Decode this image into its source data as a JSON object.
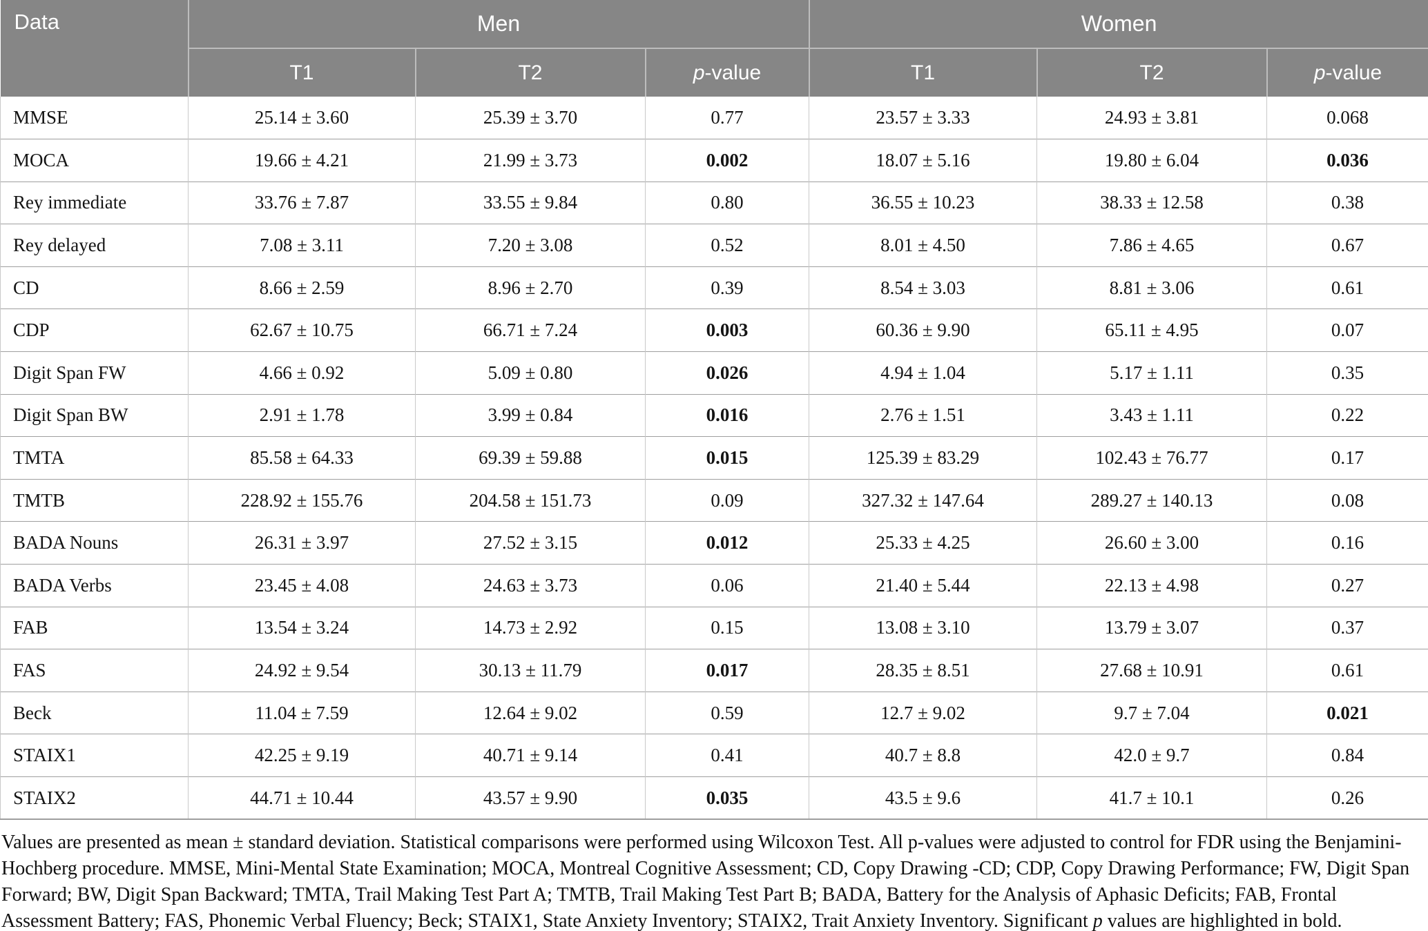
{
  "table": {
    "corner_label": "Data",
    "groups": [
      {
        "label": "Men"
      },
      {
        "label": "Women"
      }
    ],
    "sub_headers": {
      "t1": "T1",
      "t2": "T2",
      "p_italic": "p",
      "p_rest": "-value"
    },
    "rows": [
      {
        "label": "MMSE",
        "men_t1": "25.14 ± 3.60",
        "men_t2": "25.39 ± 3.70",
        "men_p": "0.77",
        "men_p_bold": false,
        "women_t1": "23.57 ± 3.33",
        "women_t2": "24.93 ± 3.81",
        "women_p": "0.068",
        "women_p_bold": false
      },
      {
        "label": "MOCA",
        "men_t1": "19.66 ± 4.21",
        "men_t2": "21.99 ± 3.73",
        "men_p": "0.002",
        "men_p_bold": true,
        "women_t1": "18.07 ± 5.16",
        "women_t2": "19.80 ± 6.04",
        "women_p": "0.036",
        "women_p_bold": true
      },
      {
        "label": "Rey immediate",
        "men_t1": "33.76 ± 7.87",
        "men_t2": "33.55 ± 9.84",
        "men_p": "0.80",
        "men_p_bold": false,
        "women_t1": "36.55 ± 10.23",
        "women_t2": "38.33 ± 12.58",
        "women_p": "0.38",
        "women_p_bold": false
      },
      {
        "label": "Rey delayed",
        "men_t1": "7.08 ± 3.11",
        "men_t2": "7.20 ± 3.08",
        "men_p": "0.52",
        "men_p_bold": false,
        "women_t1": "8.01 ± 4.50",
        "women_t2": "7.86 ± 4.65",
        "women_p": "0.67",
        "women_p_bold": false
      },
      {
        "label": "CD",
        "men_t1": "8.66 ± 2.59",
        "men_t2": "8.96 ± 2.70",
        "men_p": "0.39",
        "men_p_bold": false,
        "women_t1": "8.54 ± 3.03",
        "women_t2": "8.81 ± 3.06",
        "women_p": "0.61",
        "women_p_bold": false
      },
      {
        "label": "CDP",
        "men_t1": "62.67 ± 10.75",
        "men_t2": "66.71 ± 7.24",
        "men_p": "0.003",
        "men_p_bold": true,
        "women_t1": "60.36 ± 9.90",
        "women_t2": "65.11 ± 4.95",
        "women_p": "0.07",
        "women_p_bold": false
      },
      {
        "label": "Digit Span FW",
        "men_t1": "4.66 ± 0.92",
        "men_t2": "5.09 ± 0.80",
        "men_p": "0.026",
        "men_p_bold": true,
        "women_t1": "4.94 ± 1.04",
        "women_t2": "5.17 ± 1.11",
        "women_p": "0.35",
        "women_p_bold": false
      },
      {
        "label": "Digit Span BW",
        "men_t1": "2.91 ± 1.78",
        "men_t2": "3.99 ± 0.84",
        "men_p": "0.016",
        "men_p_bold": true,
        "women_t1": "2.76 ± 1.51",
        "women_t2": "3.43 ± 1.11",
        "women_p": "0.22",
        "women_p_bold": false
      },
      {
        "label": "TMTA",
        "men_t1": "85.58 ± 64.33",
        "men_t2": "69.39 ± 59.88",
        "men_p": "0.015",
        "men_p_bold": true,
        "women_t1": "125.39 ± 83.29",
        "women_t2": "102.43 ± 76.77",
        "women_p": "0.17",
        "women_p_bold": false
      },
      {
        "label": "TMTB",
        "men_t1": "228.92 ± 155.76",
        "men_t2": "204.58 ± 151.73",
        "men_p": "0.09",
        "men_p_bold": false,
        "women_t1": "327.32 ± 147.64",
        "women_t2": "289.27 ± 140.13",
        "women_p": "0.08",
        "women_p_bold": false
      },
      {
        "label": "BADA Nouns",
        "men_t1": "26.31 ± 3.97",
        "men_t2": "27.52 ± 3.15",
        "men_p": "0.012",
        "men_p_bold": true,
        "women_t1": "25.33 ± 4.25",
        "women_t2": "26.60 ± 3.00",
        "women_p": "0.16",
        "women_p_bold": false
      },
      {
        "label": "BADA Verbs",
        "men_t1": "23.45 ± 4.08",
        "men_t2": "24.63 ± 3.73",
        "men_p": "0.06",
        "men_p_bold": false,
        "women_t1": "21.40 ± 5.44",
        "women_t2": "22.13 ± 4.98",
        "women_p": "0.27",
        "women_p_bold": false
      },
      {
        "label": "FAB",
        "men_t1": "13.54 ± 3.24",
        "men_t2": "14.73 ± 2.92",
        "men_p": "0.15",
        "men_p_bold": false,
        "women_t1": "13.08 ± 3.10",
        "women_t2": "13.79 ± 3.07",
        "women_p": "0.37",
        "women_p_bold": false
      },
      {
        "label": "FAS",
        "men_t1": "24.92 ± 9.54",
        "men_t2": "30.13 ± 11.79",
        "men_p": "0.017",
        "men_p_bold": true,
        "women_t1": "28.35 ± 8.51",
        "women_t2": "27.68 ± 10.91",
        "women_p": "0.61",
        "women_p_bold": false
      },
      {
        "label": "Beck",
        "men_t1": "11.04 ± 7.59",
        "men_t2": "12.64 ± 9.02",
        "men_p": "0.59",
        "men_p_bold": false,
        "women_t1": "12.7 ± 9.02",
        "women_t2": "9.7 ± 7.04",
        "women_p": "0.021",
        "women_p_bold": true
      },
      {
        "label": "STAIX1",
        "men_t1": "42.25 ± 9.19",
        "men_t2": "40.71 ± 9.14",
        "men_p": "0.41",
        "men_p_bold": false,
        "women_t1": "40.7 ± 8.8",
        "women_t2": "42.0 ± 9.7",
        "women_p": "0.84",
        "women_p_bold": false
      },
      {
        "label": "STAIX2",
        "men_t1": "44.71 ± 10.44",
        "men_t2": "43.57 ± 9.90",
        "men_p": "0.035",
        "men_p_bold": true,
        "women_t1": "43.5 ± 9.6",
        "women_t2": "41.7 ± 10.1",
        "women_p": "0.26",
        "women_p_bold": false
      }
    ]
  },
  "footnote": {
    "part1": "Values are presented as mean ± standard deviation. Statistical comparisons were performed using Wilcoxon Test. All p-values were adjusted to control for FDR using the Benjamini-Hochberg procedure. MMSE, Mini-Mental State Examination; MOCA, Montreal Cognitive Assessment; CD, Copy Drawing -CD; CDP, Copy Drawing Performance; FW, Digit Span Forward; BW, Digit Span Backward; TMTA, Trail Making Test Part A; TMTB, Trail Making Test Part B; BADA, Battery for the Analysis of Aphasic Deficits; FAB, Frontal Assessment Battery; FAS, Phonemic Verbal Fluency; Beck; STAIX1, State Anxiety Inventory; STAIX2, Trait Anxiety Inventory. Significant ",
    "p_italic": "p",
    "part2": " values are highlighted in bold."
  },
  "colors": {
    "header_bg": "#868686",
    "header_text": "#ffffff",
    "header_border": "#bdbdbd",
    "row_border": "#9e9e9e",
    "column_border": "#c9c9c9",
    "body_text": "#141414"
  }
}
